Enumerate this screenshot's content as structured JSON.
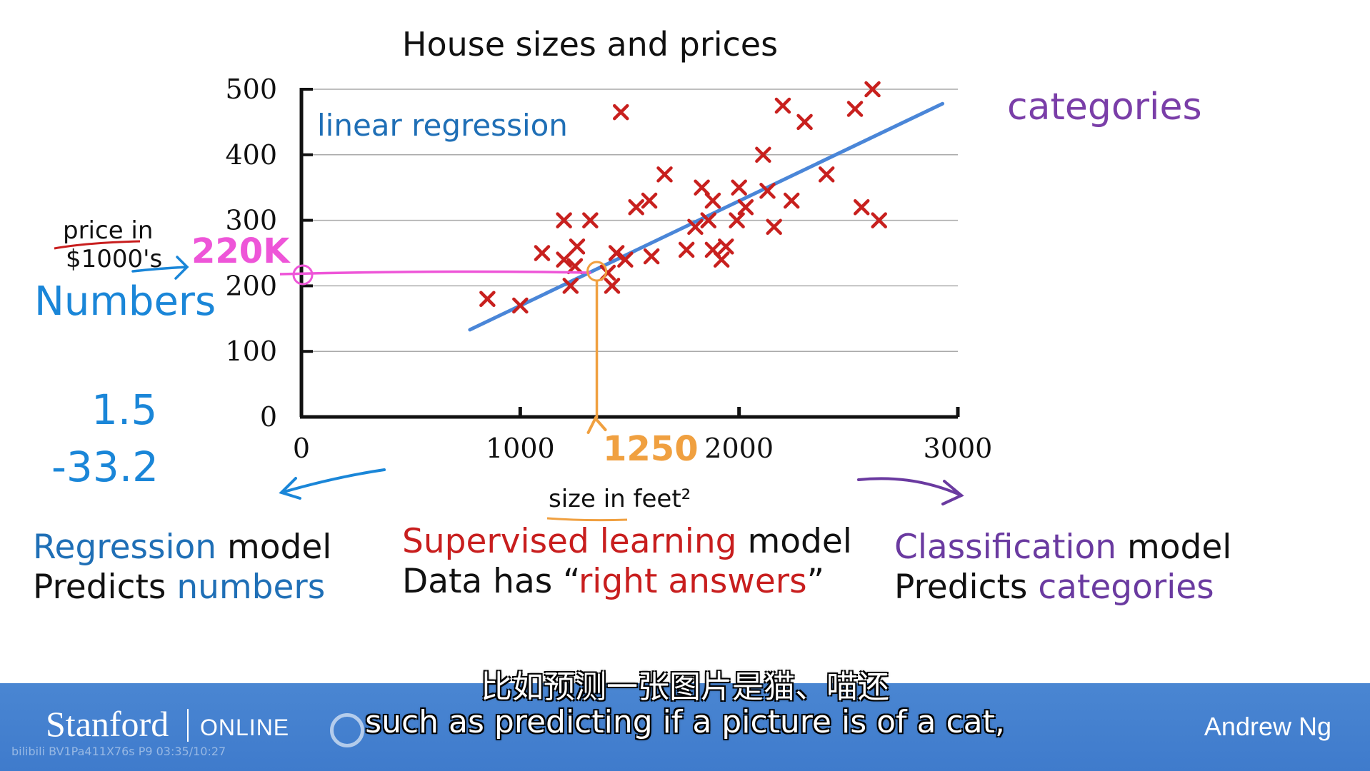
{
  "slide": {
    "chart_data": {
      "type": "scatter",
      "title": "House sizes and prices",
      "xlabel": "size in feet²",
      "ylabel": "price in $1000's",
      "xlim": [
        0,
        3000
      ],
      "ylim": [
        0,
        500
      ],
      "xticks": [
        "0",
        "1000",
        "2000",
        "3000"
      ],
      "yticks": [
        "0",
        "100",
        "200",
        "300",
        "400",
        "500"
      ],
      "grid": "horizontal",
      "points": [
        [
          850,
          180
        ],
        [
          1000,
          170
        ],
        [
          1100,
          250
        ],
        [
          1200,
          300
        ],
        [
          1200,
          240
        ],
        [
          1230,
          200
        ],
        [
          1250,
          230
        ],
        [
          1260,
          260
        ],
        [
          1320,
          300
        ],
        [
          1400,
          220
        ],
        [
          1420,
          200
        ],
        [
          1440,
          250
        ],
        [
          1460,
          465
        ],
        [
          1480,
          240
        ],
        [
          1530,
          320
        ],
        [
          1590,
          330
        ],
        [
          1600,
          245
        ],
        [
          1660,
          370
        ],
        [
          1760,
          255
        ],
        [
          1800,
          290
        ],
        [
          1830,
          350
        ],
        [
          1860,
          300
        ],
        [
          1880,
          330
        ],
        [
          1880,
          255
        ],
        [
          1920,
          240
        ],
        [
          1940,
          260
        ],
        [
          1990,
          300
        ],
        [
          2000,
          350
        ],
        [
          2030,
          320
        ],
        [
          2110,
          400
        ],
        [
          2130,
          345
        ],
        [
          2160,
          290
        ],
        [
          2200,
          475
        ],
        [
          2240,
          330
        ],
        [
          2300,
          450
        ],
        [
          2400,
          370
        ],
        [
          2530,
          470
        ],
        [
          2560,
          320
        ],
        [
          2610,
          500
        ],
        [
          2640,
          300
        ]
      ],
      "regression_line": {
        "label": "linear regression",
        "x": [
          770,
          2930
        ],
        "y": [
          133,
          478
        ]
      },
      "annotation": {
        "x": 1350,
        "y": 220,
        "x_label": "1250",
        "y_label": "220K"
      },
      "colors": {
        "points": "#c8201e",
        "line": "#4a86d8",
        "highlight_y": "#ee55d8",
        "highlight_x": "#f0a040",
        "axis": "#111111",
        "grid": "#aaaaaa"
      }
    },
    "annotations": {
      "categories": "categories",
      "numbers": "Numbers",
      "value1": "1.5",
      "value2": "-33.2"
    },
    "captions": {
      "regression": {
        "highlight": "Regression",
        "rest": " model",
        "line2_prefix": "Predicts ",
        "line2_highlight": "numbers"
      },
      "supervised": {
        "highlight": "Supervised learning",
        "rest": " model",
        "line2_prefix": "Data has “",
        "line2_highlight": "right answers",
        "line2_suffix": "”"
      },
      "classification": {
        "highlight": "Classification",
        "rest": " model",
        "line2_prefix": "Predicts ",
        "line2_highlight": "categories"
      }
    }
  },
  "footer": {
    "brand": "Stanford",
    "brand_suffix": "ONLINE",
    "presenter": "Andrew Ng",
    "watermark": "bilibili BV1Pa411X76s P9 03:35/10:27"
  },
  "subtitles": {
    "chinese": "比如预测一张图片是猫、喵还",
    "english": "such as predicting if a picture is of a cat,"
  }
}
